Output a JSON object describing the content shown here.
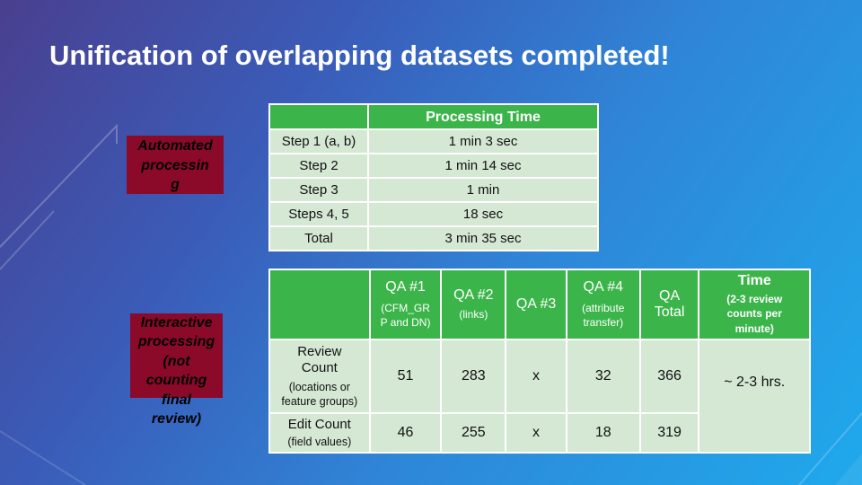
{
  "title": "Unification of overlapping datasets completed!",
  "labels": {
    "automated": [
      "Automated",
      "processin",
      "g"
    ],
    "interactive": [
      "Interactive",
      "processing",
      "(not",
      "counting",
      "final",
      "review)"
    ]
  },
  "processing_table": {
    "header": "Processing Time",
    "rows": [
      {
        "step": "Step 1 (a, b)",
        "time": "1 min 3 sec"
      },
      {
        "step": "Step 2",
        "time": "1 min 14 sec"
      },
      {
        "step": "Step 3",
        "time": "1 min"
      },
      {
        "step": "Steps 4, 5",
        "time": "18 sec"
      },
      {
        "step": "Total",
        "time": "3 min 35 sec"
      }
    ]
  },
  "qa_table": {
    "headers": {
      "qa1": {
        "main": "QA #1",
        "sub": [
          "(CFM_GR",
          "P and DN)"
        ]
      },
      "qa2": {
        "main": "QA #2",
        "sub": "(links)"
      },
      "qa3": {
        "main": "QA #3"
      },
      "qa4": {
        "main": "QA #4",
        "sub": [
          "(attribute",
          "transfer)"
        ]
      },
      "total": {
        "main": [
          "QA",
          "Total"
        ]
      },
      "time": {
        "main": "Time",
        "sub": [
          "(2-3 review",
          "counts per",
          "minute)"
        ]
      }
    },
    "rows": [
      {
        "label": [
          "Review",
          "Count"
        ],
        "sub": [
          "(locations or",
          "feature groups)"
        ],
        "qa1": "51",
        "qa2": "283",
        "qa3": "x",
        "qa4": "32",
        "total": "366"
      },
      {
        "label": [
          "Edit Count"
        ],
        "sub": [
          "(field values)"
        ],
        "qa1": "46",
        "qa2": "255",
        "qa3": "x",
        "qa4": "18",
        "total": "319"
      }
    ],
    "time_value": "~ 2-3 hrs."
  },
  "colors": {
    "header_green": "#3bb54a",
    "cell_green": "#d5e8d4",
    "label_maroon": "#8b0a2a"
  }
}
